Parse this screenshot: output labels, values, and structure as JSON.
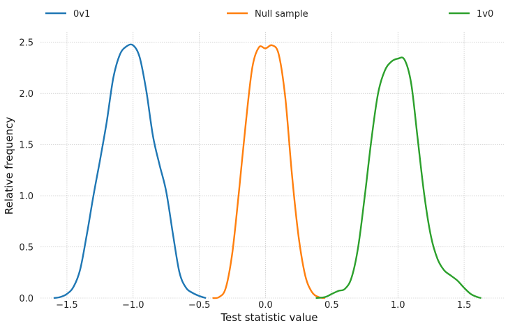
{
  "chart_data": {
    "type": "line",
    "xlabel": "Test statistic value",
    "ylabel": "Relative frequency",
    "xlim": [
      -1.7,
      1.8
    ],
    "ylim": [
      0,
      2.6
    ],
    "xticks": [
      -1.5,
      -1.0,
      -0.5,
      0.0,
      0.5,
      1.0,
      1.5
    ],
    "xtick_labels": [
      "−1.5",
      "−1.0",
      "−0.5",
      "0.0",
      "0.5",
      "1.0",
      "1.5"
    ],
    "yticks": [
      0.0,
      0.5,
      1.0,
      1.5,
      2.0,
      2.5
    ],
    "ytick_labels": [
      "0.0",
      "0.5",
      "1.0",
      "1.5",
      "2.0",
      "2.5"
    ],
    "grid": true,
    "legend_position": "top",
    "series": [
      {
        "name": "0v1",
        "color": "#1f77b4",
        "points": [
          [
            -1.6,
            0.0
          ],
          [
            -1.55,
            0.01
          ],
          [
            -1.5,
            0.04
          ],
          [
            -1.45,
            0.11
          ],
          [
            -1.4,
            0.28
          ],
          [
            -1.35,
            0.62
          ],
          [
            -1.3,
            1.0
          ],
          [
            -1.25,
            1.35
          ],
          [
            -1.2,
            1.72
          ],
          [
            -1.15,
            2.15
          ],
          [
            -1.1,
            2.38
          ],
          [
            -1.05,
            2.46
          ],
          [
            -1.0,
            2.47
          ],
          [
            -0.95,
            2.35
          ],
          [
            -0.9,
            2.02
          ],
          [
            -0.85,
            1.58
          ],
          [
            -0.8,
            1.3
          ],
          [
            -0.75,
            1.04
          ],
          [
            -0.7,
            0.63
          ],
          [
            -0.65,
            0.25
          ],
          [
            -0.6,
            0.1
          ],
          [
            -0.55,
            0.05
          ],
          [
            -0.5,
            0.02
          ],
          [
            -0.45,
            0.0
          ]
        ]
      },
      {
        "name": "Null sample",
        "color": "#ff7f0e",
        "points": [
          [
            -0.4,
            0.0
          ],
          [
            -0.35,
            0.01
          ],
          [
            -0.3,
            0.1
          ],
          [
            -0.25,
            0.45
          ],
          [
            -0.2,
            1.05
          ],
          [
            -0.15,
            1.7
          ],
          [
            -0.1,
            2.25
          ],
          [
            -0.05,
            2.45
          ],
          [
            0.0,
            2.44
          ],
          [
            0.05,
            2.47
          ],
          [
            0.1,
            2.38
          ],
          [
            0.15,
            1.95
          ],
          [
            0.2,
            1.2
          ],
          [
            0.25,
            0.6
          ],
          [
            0.3,
            0.22
          ],
          [
            0.35,
            0.06
          ],
          [
            0.4,
            0.01
          ],
          [
            0.45,
            0.0
          ]
        ]
      },
      {
        "name": "1v0",
        "color": "#2ca02c",
        "points": [
          [
            0.38,
            0.0
          ],
          [
            0.45,
            0.01
          ],
          [
            0.5,
            0.04
          ],
          [
            0.55,
            0.07
          ],
          [
            0.6,
            0.09
          ],
          [
            0.65,
            0.2
          ],
          [
            0.7,
            0.5
          ],
          [
            0.75,
            1.0
          ],
          [
            0.8,
            1.55
          ],
          [
            0.85,
            2.0
          ],
          [
            0.9,
            2.22
          ],
          [
            0.95,
            2.31
          ],
          [
            1.0,
            2.34
          ],
          [
            1.05,
            2.33
          ],
          [
            1.1,
            2.1
          ],
          [
            1.15,
            1.55
          ],
          [
            1.2,
            1.0
          ],
          [
            1.25,
            0.6
          ],
          [
            1.3,
            0.38
          ],
          [
            1.35,
            0.27
          ],
          [
            1.4,
            0.22
          ],
          [
            1.45,
            0.17
          ],
          [
            1.5,
            0.1
          ],
          [
            1.55,
            0.04
          ],
          [
            1.6,
            0.01
          ],
          [
            1.63,
            0.0
          ]
        ]
      }
    ]
  }
}
